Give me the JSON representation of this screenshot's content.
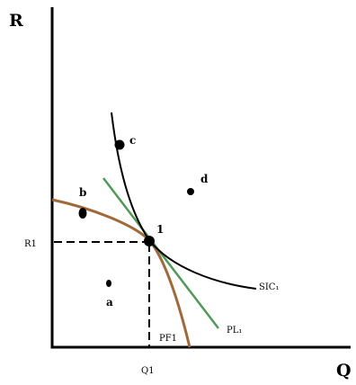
{
  "axes": {
    "y_title": "R",
    "x_title": "Q",
    "x_tick": "Q1",
    "y_tick": "R1"
  },
  "points": {
    "a": "a",
    "b": "b",
    "c": "c",
    "d": "d",
    "tangent": "1"
  },
  "curves": {
    "sic": "SIC₁",
    "pl": "PL₁",
    "pf": "PF1"
  },
  "colors": {
    "axis": "#000000",
    "sic_curve": "#000000",
    "pl_line": "#4f9a58",
    "pf_curve": "#a0693a"
  }
}
